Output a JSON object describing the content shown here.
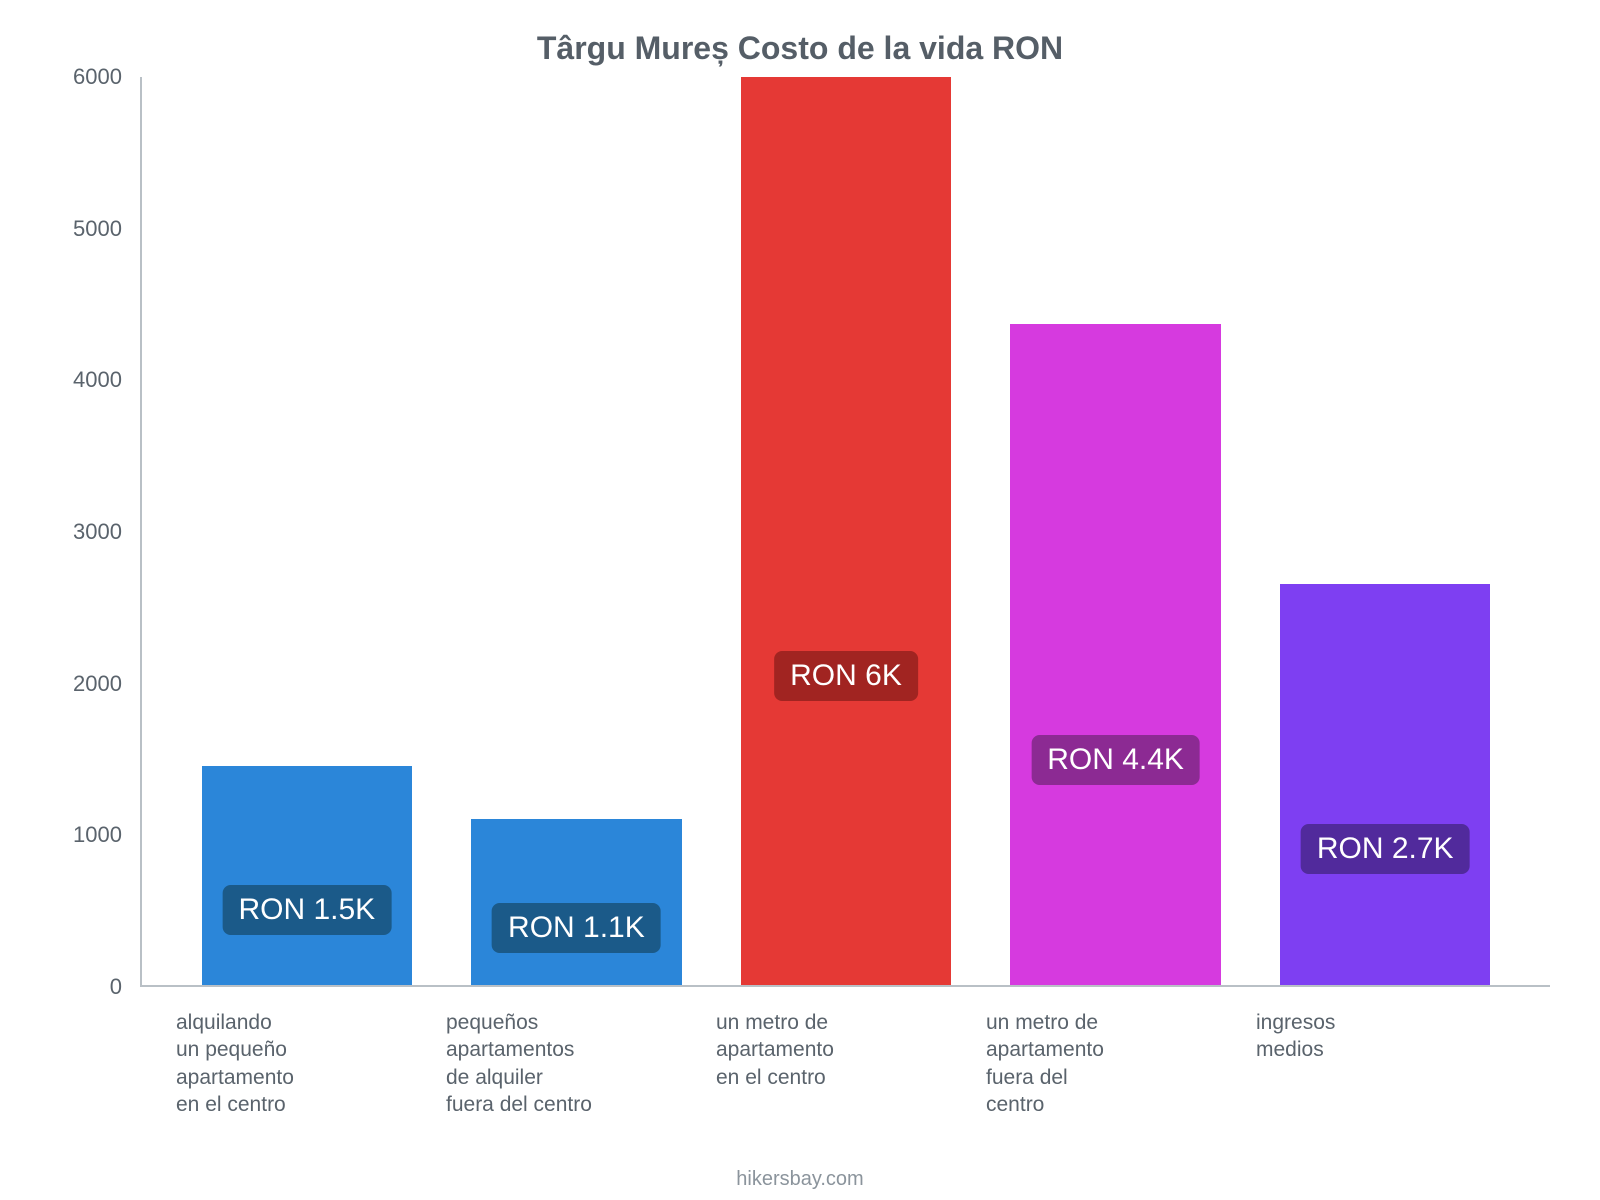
{
  "chart": {
    "type": "bar",
    "title": "Târgu Mureș Costo de la vida RON",
    "title_fontsize": 32,
    "title_color": "#555e67",
    "background_color": "#ffffff",
    "axis_color": "#b9c0c6",
    "ylim": [
      0,
      6000
    ],
    "yticks": [
      0,
      1000,
      2000,
      3000,
      4000,
      5000,
      6000
    ],
    "ytick_fontsize": 22,
    "ytick_color": "#5a636c",
    "xlabel_fontsize": 21,
    "xlabel_color": "#5a636c",
    "value_label_fontsize": 30,
    "bar_width": 0.78,
    "categories": [
      "alquilando un pequeño apartamento en el centro",
      "pequeños apartamentos de alquiler fuera del centro",
      "un metro de apartamento en el centro",
      "un metro de apartamento fuera del centro",
      "ingresos medios"
    ],
    "x_labels_wrapped": [
      [
        "alquilando",
        "un pequeño",
        "apartamento",
        "en el centro"
      ],
      [
        "pequeños",
        "apartamentos",
        "de alquiler",
        "fuera del centro"
      ],
      [
        "un metro de apartamento",
        "en el centro"
      ],
      [
        "un metro de apartamento",
        "fuera del",
        "centro"
      ],
      [
        "ingresos",
        "medios"
      ]
    ],
    "values": [
      1450,
      1100,
      6000,
      4370,
      2650
    ],
    "value_labels": [
      "RON 1.5K",
      "RON 1.1K",
      "RON 6K",
      "RON 4.4K",
      "RON 2.7K"
    ],
    "bar_colors": [
      "#2b86d9",
      "#2b86d9",
      "#e53935",
      "#d63adf",
      "#7e3ff2"
    ],
    "badge_colors": [
      "#1b5a89",
      "#1b5a89",
      "#a12421",
      "#8c2a93",
      "#512a9c"
    ]
  },
  "attribution": "hikersbay.com"
}
